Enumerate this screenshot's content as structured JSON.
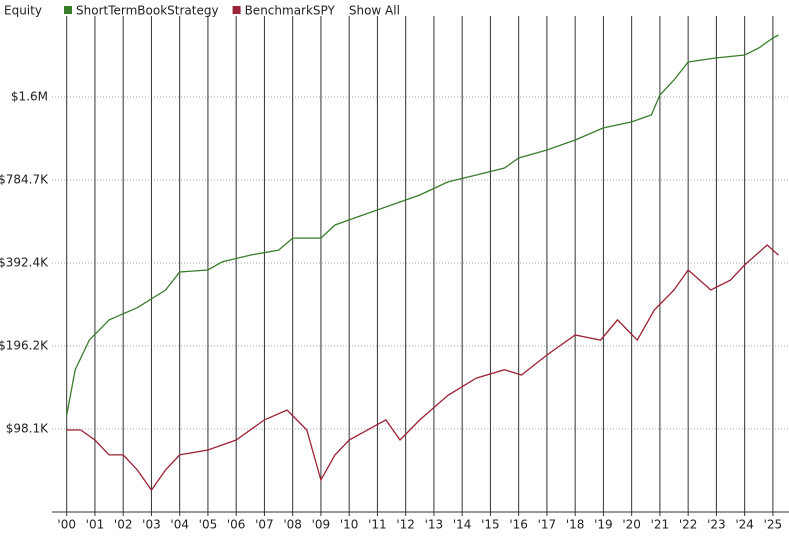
{
  "chart_data": {
    "type": "line",
    "title": "Equity",
    "show_all": "Show All",
    "log_scale": true,
    "grid": true,
    "xlim": [
      1999.48,
      2025.57
    ],
    "ylim": [
      49050,
      2935000
    ],
    "xticks": [
      {
        "value": 2000,
        "label": "'00"
      },
      {
        "value": 2001,
        "label": "'01"
      },
      {
        "value": 2002,
        "label": "'02"
      },
      {
        "value": 2003,
        "label": "'03"
      },
      {
        "value": 2004,
        "label": "'04"
      },
      {
        "value": 2005,
        "label": "'05"
      },
      {
        "value": 2006,
        "label": "'06"
      },
      {
        "value": 2007,
        "label": "'07"
      },
      {
        "value": 2008,
        "label": "'08"
      },
      {
        "value": 2009,
        "label": "'09"
      },
      {
        "value": 2010,
        "label": "'10"
      },
      {
        "value": 2011,
        "label": "'11"
      },
      {
        "value": 2012,
        "label": "'12"
      },
      {
        "value": 2013,
        "label": "'13"
      },
      {
        "value": 2014,
        "label": "'14"
      },
      {
        "value": 2015,
        "label": "'15"
      },
      {
        "value": 2016,
        "label": "'16"
      },
      {
        "value": 2017,
        "label": "'17"
      },
      {
        "value": 2018,
        "label": "'18"
      },
      {
        "value": 2019,
        "label": "'19"
      },
      {
        "value": 2020,
        "label": "'20"
      },
      {
        "value": 2021,
        "label": "'21"
      },
      {
        "value": 2022,
        "label": "'22"
      },
      {
        "value": 2023,
        "label": "'23"
      },
      {
        "value": 2024,
        "label": "'24"
      },
      {
        "value": 2025,
        "label": "'25"
      }
    ],
    "yticks": [
      {
        "value": 98100,
        "label": "$98.1K"
      },
      {
        "value": 196200,
        "label": "$196.2K"
      },
      {
        "value": 392400,
        "label": "$392.4K"
      },
      {
        "value": 784700,
        "label": "$784.7K"
      },
      {
        "value": 1569400,
        "label": "$1.6M"
      }
    ],
    "series": [
      {
        "name": "ShortTermBookStrategy",
        "color": "#3a7d2c",
        "x": [
          2000.0,
          2000.3,
          2000.8,
          2001.5,
          2002.5,
          2003.5,
          2004.0,
          2005.0,
          2005.5,
          2006.5,
          2007.5,
          2008.0,
          2009.0,
          2009.5,
          2010.5,
          2011.5,
          2012.5,
          2013.5,
          2014.5,
          2015.5,
          2016.0,
          2017.0,
          2018.0,
          2019.0,
          2020.0,
          2020.7,
          2021.0,
          2021.5,
          2022.0,
          2023.0,
          2024.0,
          2024.5,
          2025.0,
          2025.2
        ],
        "values": [
          110000,
          161000,
          206000,
          244000,
          270000,
          313000,
          364000,
          370000,
          396000,
          419000,
          437000,
          483000,
          483000,
          539000,
          586000,
          637000,
          692000,
          772000,
          818000,
          867000,
          943000,
          1008000,
          1096000,
          1212000,
          1274000,
          1351000,
          1596000,
          1809000,
          2102000,
          2174000,
          2229000,
          2362000,
          2569000,
          2634000
        ]
      },
      {
        "name": "BenchmarkSPY",
        "color": "#9b2335",
        "x": [
          2000.0,
          2000.5,
          2001.0,
          2001.5,
          2002.0,
          2002.5,
          2003.0,
          2003.5,
          2004.0,
          2005.0,
          2006.0,
          2007.0,
          2007.8,
          2008.5,
          2009.0,
          2009.5,
          2010.0,
          2011.3,
          2011.8,
          2012.5,
          2013.5,
          2014.5,
          2015.5,
          2016.1,
          2017.0,
          2018.0,
          2018.9,
          2019.5,
          2020.2,
          2020.8,
          2021.5,
          2022.0,
          2022.8,
          2023.5,
          2024.0,
          2024.8,
          2025.2
        ],
        "values": [
          97300,
          97300,
          89500,
          79000,
          79000,
          69700,
          58900,
          69700,
          79000,
          82300,
          89500,
          105800,
          115000,
          97300,
          64100,
          79000,
          89500,
          105800,
          89500,
          105800,
          130000,
          150000,
          161000,
          154000,
          182000,
          215000,
          206000,
          244000,
          206000,
          265000,
          313000,
          370000,
          313000,
          340000,
          386000,
          456000,
          419000
        ]
      }
    ]
  }
}
